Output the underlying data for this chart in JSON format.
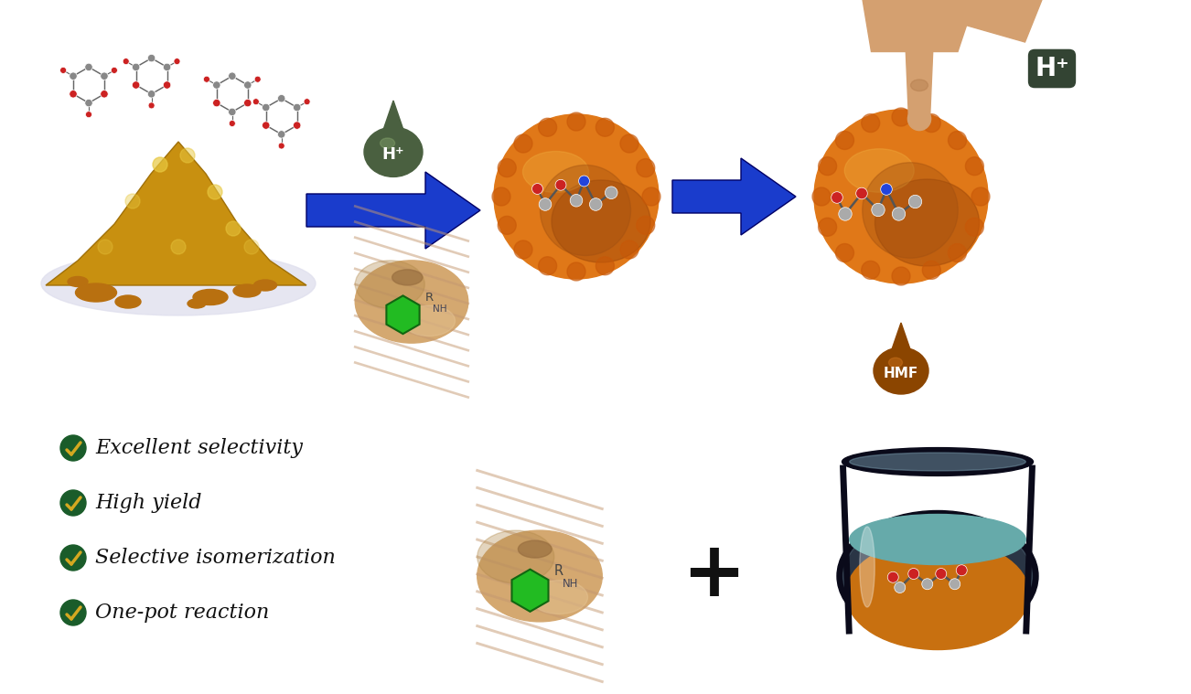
{
  "background_color": "#ffffff",
  "bullet_points": [
    "Excellent selectivity",
    "High yield",
    "Selective isomerization",
    "One-pot reaction"
  ],
  "bullet_color": "#1a5c2a",
  "bullet_text_color": "#111111",
  "arrow_color": "#1a3ccc",
  "hplus_drop_color_top": "#4a6040",
  "hplus_drop_color_bot": "#7a9060",
  "hmf_drop_color_top": "#8b4500",
  "hmf_drop_color_bot": "#d4860a",
  "orange_ball_main": "#e87a10",
  "orange_ball_dark": "#a04808",
  "orange_ball_light": "#f0a030",
  "wood_main": "#d4a870",
  "wood_shadow": "#b88848",
  "wood_highlight": "#e8c898",
  "wood_stripe": "#c49060",
  "green_hex": "#22bb22",
  "hand_main": "#d4a070",
  "hand_dark": "#b07848",
  "glass_rim": "#1a1a2a",
  "glass_body": "#88aabb",
  "glass_liquid_top": "#88bbcc",
  "glass_liquid_bot": "#c87010",
  "plus_color": "#111111",
  "fig_width": 13.02,
  "fig_height": 7.59
}
